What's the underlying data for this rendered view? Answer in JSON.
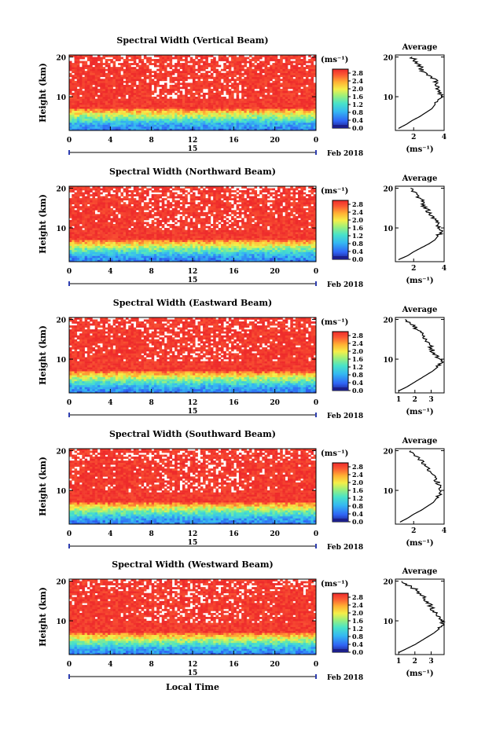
{
  "figure": {
    "date_label": "Feb 2018",
    "day_label": "15",
    "xlabel": "Local Time",
    "colorbar_unit": "(ms⁻¹)"
  },
  "chart_data": [
    {
      "type": "heatmap",
      "title": "Spectral Width (Vertical Beam)",
      "ylabel": "Height (km)",
      "xticks": [
        "0",
        "4",
        "8",
        "12",
        "16",
        "20",
        "0"
      ],
      "yticks": [
        "10",
        "20"
      ],
      "xlim": [
        0,
        24
      ],
      "ylim": [
        1.5,
        20.5
      ],
      "colorbar": {
        "ticks": [
          "0.0",
          "0.4",
          "0.8",
          "1.2",
          "1.6",
          "2.0",
          "2.4",
          "2.8"
        ],
        "range": [
          0,
          3.0
        ]
      },
      "profile": {
        "title": "Average",
        "xlabel": "(ms⁻¹)",
        "xticks": [
          "2",
          "4"
        ],
        "xlim": [
          0.8,
          4.0
        ],
        "heights": [
          2,
          3,
          4,
          5,
          6,
          7,
          8,
          9,
          10,
          11,
          12,
          13,
          14,
          15,
          16,
          17,
          18,
          19,
          20
        ],
        "values": [
          1.0,
          1.5,
          1.9,
          2.4,
          2.8,
          3.2,
          3.4,
          3.6,
          3.8,
          3.7,
          3.6,
          3.4,
          3.5,
          3.2,
          2.7,
          2.5,
          2.4,
          2.1,
          1.9
        ]
      }
    },
    {
      "type": "heatmap",
      "title": "Spectral Width (Northward Beam)",
      "ylabel": "Height (km)",
      "xticks": [
        "0",
        "4",
        "8",
        "12",
        "16",
        "20",
        "0"
      ],
      "yticks": [
        "10",
        "20"
      ],
      "xlim": [
        0,
        24
      ],
      "ylim": [
        1.5,
        20.5
      ],
      "colorbar": {
        "ticks": [
          "0.0",
          "0.4",
          "0.8",
          "1.2",
          "1.6",
          "2.0",
          "2.4",
          "2.8"
        ],
        "range": [
          0,
          3.0
        ]
      },
      "profile": {
        "title": "Average",
        "xlabel": "(ms⁻¹)",
        "xticks": [
          "2",
          "4"
        ],
        "xlim": [
          0.8,
          4.0
        ],
        "heights": [
          2,
          3,
          4,
          5,
          6,
          7,
          8,
          9,
          10,
          11,
          12,
          13,
          14,
          15,
          16,
          17,
          18,
          19,
          20
        ],
        "values": [
          1.0,
          1.6,
          2.0,
          2.5,
          3.0,
          3.4,
          3.6,
          3.8,
          3.7,
          3.6,
          3.4,
          3.2,
          3.0,
          2.8,
          2.6,
          2.5,
          2.2,
          2.0,
          1.8
        ]
      }
    },
    {
      "type": "heatmap",
      "title": "Spectral Width (Eastward Beam)",
      "ylabel": "Height (km)",
      "xticks": [
        "0",
        "4",
        "8",
        "12",
        "16",
        "20",
        "0"
      ],
      "yticks": [
        "10",
        "20"
      ],
      "xlim": [
        0,
        24
      ],
      "ylim": [
        1.5,
        20.5
      ],
      "colorbar": {
        "ticks": [
          "0.0",
          "0.4",
          "0.8",
          "1.2",
          "1.6",
          "2.0",
          "2.4",
          "2.8"
        ],
        "range": [
          0,
          3.0
        ]
      },
      "profile": {
        "title": "Average",
        "xlabel": "(ms⁻¹)",
        "xticks": [
          "1",
          "2",
          "3"
        ],
        "xlim": [
          0.8,
          3.8
        ],
        "heights": [
          2,
          3,
          4,
          5,
          6,
          7,
          8,
          9,
          10,
          11,
          12,
          13,
          14,
          15,
          16,
          17,
          18,
          19,
          20
        ],
        "values": [
          1.0,
          1.5,
          1.9,
          2.3,
          2.7,
          3.1,
          3.4,
          3.6,
          3.5,
          3.3,
          3.1,
          3.0,
          2.8,
          2.6,
          2.4,
          2.3,
          2.0,
          1.7,
          1.4
        ]
      }
    },
    {
      "type": "heatmap",
      "title": "Spectral Width (Southward Beam)",
      "ylabel": "Height (km)",
      "xticks": [
        "0",
        "4",
        "8",
        "12",
        "16",
        "20",
        "0"
      ],
      "yticks": [
        "10",
        "20"
      ],
      "xlim": [
        0,
        24
      ],
      "ylim": [
        1.5,
        20.5
      ],
      "colorbar": {
        "ticks": [
          "0.0",
          "0.4",
          "0.8",
          "1.2",
          "1.6",
          "2.0",
          "2.4",
          "2.8"
        ],
        "range": [
          0,
          3.0
        ]
      },
      "profile": {
        "title": "Average",
        "xlabel": "(ms⁻¹)",
        "xticks": [
          "2",
          "4"
        ],
        "xlim": [
          0.8,
          4.0
        ],
        "heights": [
          2,
          3,
          4,
          5,
          6,
          7,
          8,
          9,
          10,
          11,
          12,
          13,
          14,
          15,
          16,
          17,
          18,
          19,
          20
        ],
        "values": [
          1.1,
          1.6,
          2.0,
          2.5,
          2.9,
          3.3,
          3.5,
          3.7,
          3.8,
          3.7,
          3.6,
          3.4,
          3.2,
          3.0,
          2.8,
          2.6,
          2.3,
          2.0,
          1.8
        ]
      }
    },
    {
      "type": "heatmap",
      "title": "Spectral Width (Westward Beam)",
      "ylabel": "Height (km)",
      "xticks": [
        "0",
        "4",
        "8",
        "12",
        "16",
        "20",
        "0"
      ],
      "yticks": [
        "10",
        "20"
      ],
      "xlim": [
        0,
        24
      ],
      "ylim": [
        1.5,
        20.5
      ],
      "colorbar": {
        "ticks": [
          "0.0",
          "0.4",
          "0.8",
          "1.2",
          "1.6",
          "2.0",
          "2.4",
          "2.8"
        ],
        "range": [
          0,
          3.0
        ]
      },
      "profile": {
        "title": "Average",
        "xlabel": "(ms⁻¹)",
        "xticks": [
          "1",
          "2",
          "3"
        ],
        "xlim": [
          0.8,
          3.8
        ],
        "heights": [
          2,
          3,
          4,
          5,
          6,
          7,
          8,
          9,
          10,
          11,
          12,
          13,
          14,
          15,
          16,
          17,
          18,
          19,
          20
        ],
        "values": [
          1.0,
          1.5,
          2.0,
          2.4,
          2.8,
          3.2,
          3.5,
          3.7,
          3.6,
          3.4,
          3.2,
          3.1,
          2.9,
          2.7,
          2.5,
          2.3,
          2.0,
          1.6,
          1.2
        ]
      }
    }
  ]
}
